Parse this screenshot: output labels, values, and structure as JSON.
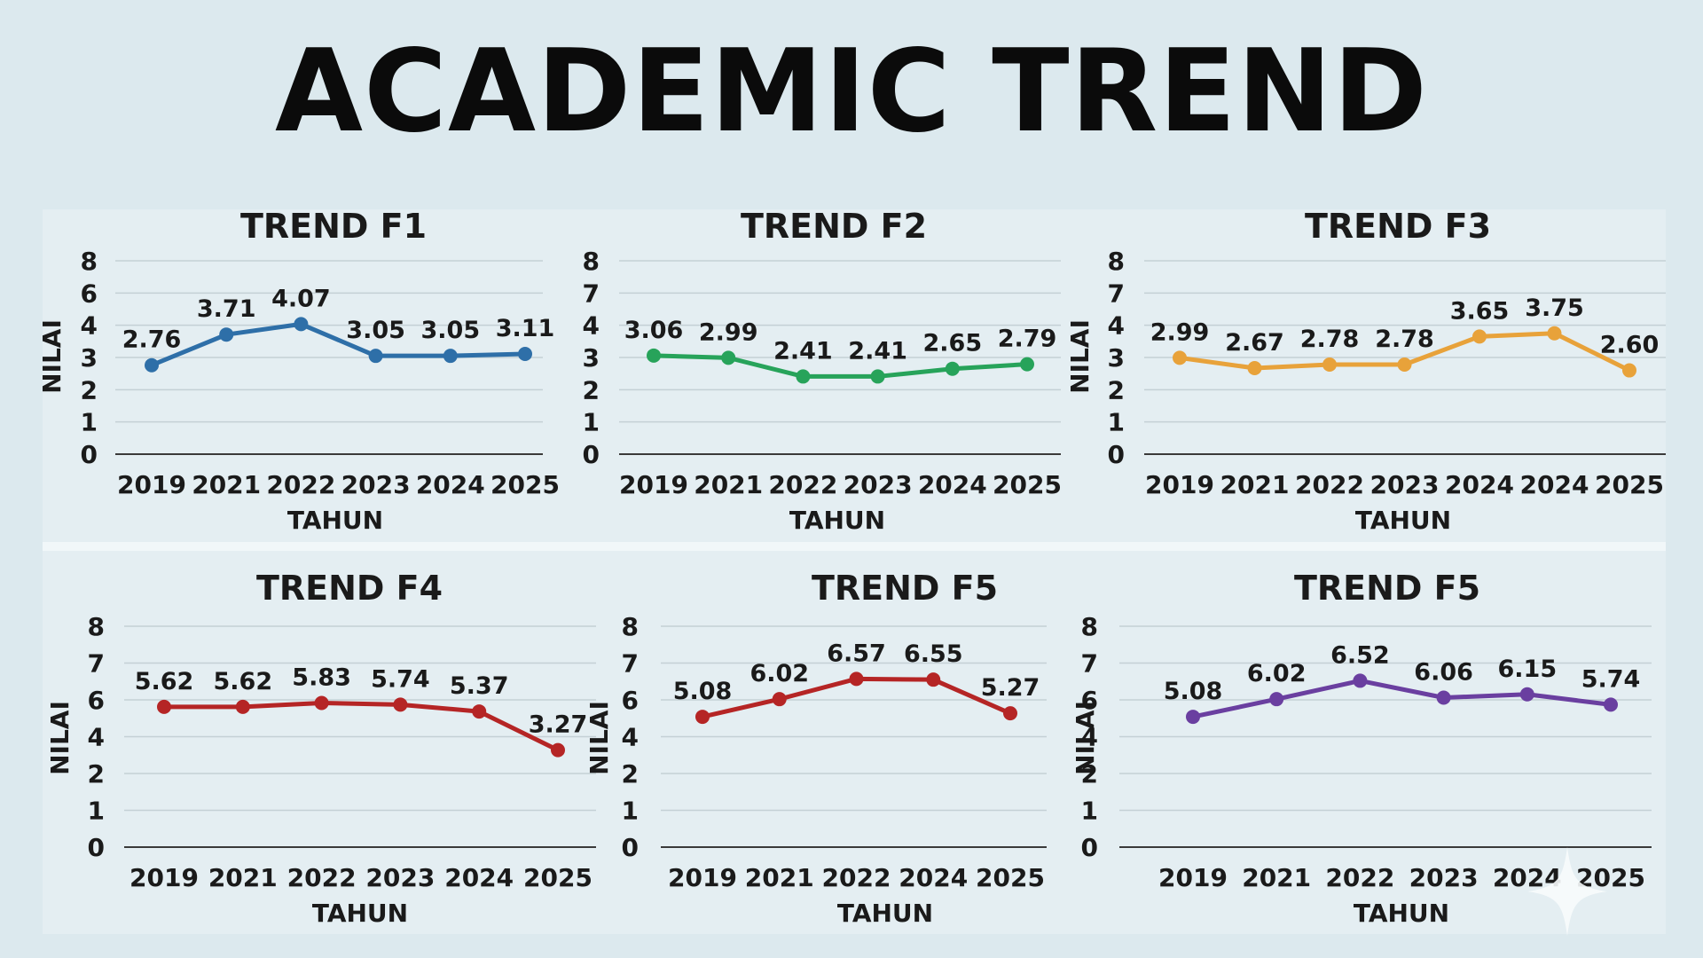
{
  "page": {
    "title": "ACADEMIC TREND",
    "background": "#dce9ee"
  },
  "chart_data": [
    {
      "type": "line",
      "title": "TREND F1",
      "xlabel": "TAHUN",
      "ylabel": "NILAI",
      "categories": [
        "2019",
        "2021",
        "2022",
        "2023",
        "2024",
        "2025"
      ],
      "y_ticks": [
        "0",
        "1",
        "2",
        "3",
        "4",
        "6",
        "8"
      ],
      "series": [
        {
          "color": "#2e6fa8",
          "values": [
            2.76,
            3.71,
            4.07,
            3.05,
            3.05,
            3.11
          ],
          "labels": [
            "2.76",
            "3.71",
            "4.07",
            "3.05",
            "3.05",
            "3.11"
          ]
        }
      ],
      "grid": true,
      "legend": "none"
    },
    {
      "type": "line",
      "title": "TREND F2",
      "xlabel": "TAHUN",
      "ylabel": "",
      "categories": [
        "2019",
        "2021",
        "2022",
        "2023",
        "2024",
        "2025"
      ],
      "y_ticks": [
        "0",
        "1",
        "2",
        "3",
        "4",
        "7",
        "8"
      ],
      "series": [
        {
          "color": "#27a35a",
          "values": [
            3.06,
            2.99,
            2.41,
            2.41,
            2.65,
            2.79
          ],
          "labels": [
            "3.06",
            "2.99",
            "2.41",
            "2.41",
            "2.65",
            "2.79"
          ]
        }
      ],
      "grid": true,
      "legend": "none"
    },
    {
      "type": "line",
      "title": "TREND F3",
      "xlabel": "TAHUN",
      "ylabel": "NILAI",
      "categories": [
        "2019",
        "2021",
        "2022",
        "2023",
        "2024",
        "2024",
        "2025"
      ],
      "y_ticks": [
        "0",
        "1",
        "2",
        "3",
        "4",
        "7",
        "8"
      ],
      "series": [
        {
          "color": "#e8a23a",
          "values": [
            2.99,
            2.67,
            2.78,
            2.78,
            3.65,
            3.75,
            2.6
          ],
          "labels": [
            "2.99",
            "2.67",
            "2.78",
            "2.78",
            "3.65",
            "3.75",
            "2.60"
          ]
        }
      ],
      "grid": true,
      "legend": "none"
    },
    {
      "type": "line",
      "title": "TREND F4",
      "xlabel": "TAHUN",
      "ylabel": "NILAI",
      "categories": [
        "2019",
        "2021",
        "2022",
        "2023",
        "2024",
        "2025"
      ],
      "y_ticks": [
        "0",
        "1",
        "2",
        "4",
        "6",
        "7",
        "8"
      ],
      "series": [
        {
          "color": "#b52525",
          "values": [
            5.62,
            5.62,
            5.83,
            5.74,
            5.37,
            3.27
          ],
          "labels": [
            "5.62",
            "5.62",
            "5.83",
            "5.74",
            "5.37",
            "3.27"
          ]
        }
      ],
      "grid": true,
      "legend": "none"
    },
    {
      "type": "line",
      "title": "TREND F5",
      "xlabel": "TAHUN",
      "ylabel": "NILAI",
      "categories": [
        "2019",
        "2021",
        "2022",
        "2024",
        "2025"
      ],
      "y_ticks": [
        "0",
        "1",
        "2",
        "4",
        "6",
        "7",
        "8"
      ],
      "series": [
        {
          "color": "#b52525",
          "values": [
            5.08,
            6.02,
            6.57,
            6.55,
            5.27
          ],
          "labels": [
            "5.08",
            "6.02",
            "6.57",
            "6.55",
            "5.27"
          ]
        }
      ],
      "grid": true,
      "legend": "none"
    },
    {
      "type": "line",
      "title": "TREND F5",
      "xlabel": "TAHUN",
      "ylabel": "NILAI",
      "categories": [
        "2019",
        "2021",
        "2022",
        "2023",
        "2024",
        "2025"
      ],
      "y_ticks": [
        "0",
        "1",
        "2",
        "4",
        "6",
        "7",
        "8"
      ],
      "series": [
        {
          "color": "#6a3fa0",
          "values": [
            5.08,
            6.02,
            6.52,
            6.06,
            6.15,
            5.74
          ],
          "labels": [
            "5.08",
            "6.02",
            "6.52",
            "6.06",
            "6.15",
            "5.74"
          ]
        }
      ],
      "grid": true,
      "legend": "none"
    }
  ]
}
